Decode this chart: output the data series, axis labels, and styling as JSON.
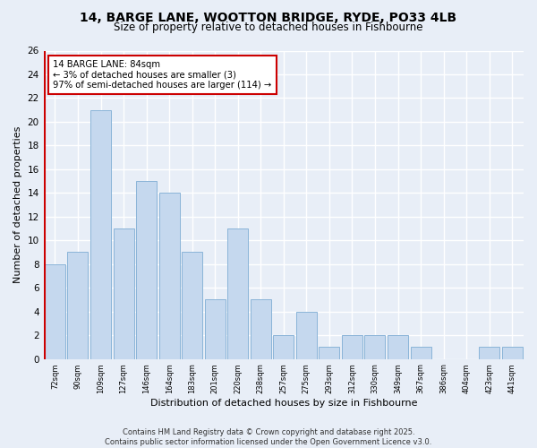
{
  "title1": "14, BARGE LANE, WOOTTON BRIDGE, RYDE, PO33 4LB",
  "title2": "Size of property relative to detached houses in Fishbourne",
  "xlabel": "Distribution of detached houses by size in Fishbourne",
  "ylabel": "Number of detached properties",
  "categories": [
    "72sqm",
    "90sqm",
    "109sqm",
    "127sqm",
    "146sqm",
    "164sqm",
    "183sqm",
    "201sqm",
    "220sqm",
    "238sqm",
    "257sqm",
    "275sqm",
    "293sqm",
    "312sqm",
    "330sqm",
    "349sqm",
    "367sqm",
    "386sqm",
    "404sqm",
    "423sqm",
    "441sqm"
  ],
  "values": [
    8,
    9,
    21,
    11,
    15,
    14,
    9,
    5,
    11,
    5,
    2,
    4,
    1,
    2,
    2,
    2,
    1,
    0,
    0,
    1,
    1
  ],
  "bar_color": "#c5d8ee",
  "bar_edge_color": "#8ab4d8",
  "annotation_text": "14 BARGE LANE: 84sqm\n← 3% of detached houses are smaller (3)\n97% of semi-detached houses are larger (114) →",
  "annotation_box_color": "#ffffff",
  "annotation_box_edge_color": "#cc0000",
  "marker_line_color": "#cc0000",
  "marker_bar_index": 0,
  "ylim": [
    0,
    26
  ],
  "yticks": [
    0,
    2,
    4,
    6,
    8,
    10,
    12,
    14,
    16,
    18,
    20,
    22,
    24,
    26
  ],
  "background_color": "#e8eef7",
  "grid_color": "#ffffff",
  "footer_text": "Contains HM Land Registry data © Crown copyright and database right 2025.\nContains public sector information licensed under the Open Government Licence v3.0."
}
